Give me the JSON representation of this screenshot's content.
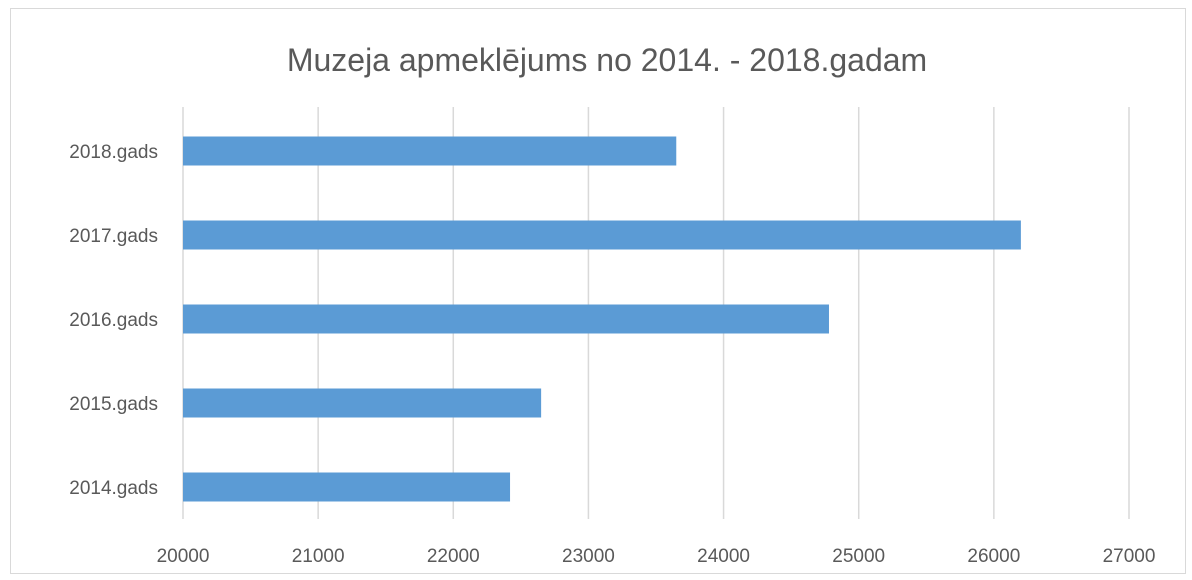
{
  "chart_data": {
    "type": "bar",
    "orientation": "horizontal",
    "title": "Muzeja apmeklējums no 2014. - 2018.gadam",
    "xlabel": "",
    "ylabel": "",
    "categories": [
      "2018.gads",
      "2017.gads",
      "2016.gads",
      "2015.gads",
      "2014.gads"
    ],
    "values": [
      23650,
      26200,
      24780,
      22650,
      22420
    ],
    "xlim": [
      20000,
      27000
    ],
    "xticks": [
      "20000",
      "21000",
      "22000",
      "23000",
      "24000",
      "25000",
      "26000",
      "27000"
    ],
    "grid": "vertical",
    "legend": "none",
    "bar_color": "#5b9bd5",
    "grid_color": "#d9d9d9"
  }
}
